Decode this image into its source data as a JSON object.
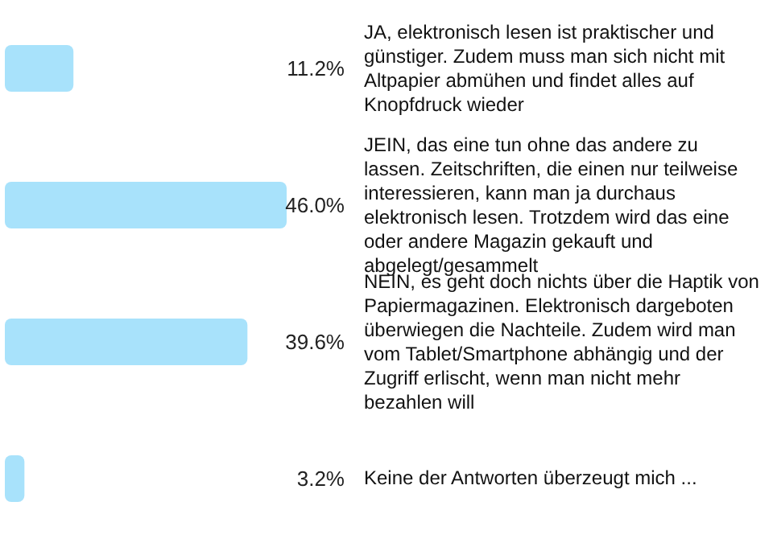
{
  "chart_data": {
    "type": "bar",
    "orientation": "horizontal",
    "categories": [
      "JA, elektronisch lesen ist praktischer und günstiger. Zudem muss man sich nicht mit Altpapier abmühen und findet alles auf Knopfdruck wieder",
      "JEIN, das eine tun ohne das andere zu lassen. Zeitschriften, die einen nur teilweise interessieren, kann man ja durchaus elektronisch lesen. Trotzdem wird das eine oder andere Magazin gekauft und abgelegt/gesammelt",
      "NEIN, es geht doch nichts über die Haptik von Papiermagazinen. Elektronisch dargeboten überwiegen die Nachteile. Zudem wird man vom Tablet/Smartphone abhängig und der Zugriff erlischt, wenn man nicht mehr bezahlen will",
      "Keine der Antworten überzeugt mich ..."
    ],
    "values": [
      11.2,
      46.0,
      39.6,
      3.2
    ],
    "value_labels": [
      "11.2%",
      "46.0%",
      "39.6%",
      "3.2%"
    ],
    "color": "#a8e2fb"
  }
}
